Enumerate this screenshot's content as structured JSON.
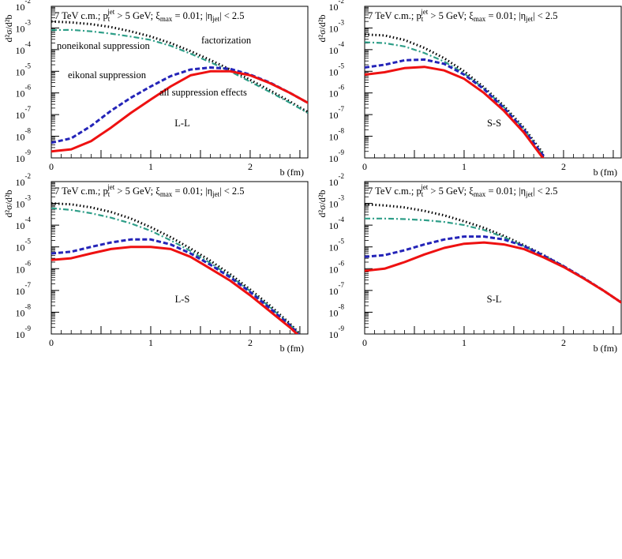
{
  "colors": {
    "factorization": "#000000",
    "noneikonal": "#2e9e88",
    "eikonal": "#2424b8",
    "all": "#ee1111",
    "frame": "#000000"
  },
  "common": {
    "header_prefix": "7 TeV c.m.;  p",
    "header_pt_sub": "t",
    "header_pt_sup": "jet",
    "header_mid": " > 5 GeV;  ξ",
    "header_xi_sub": "max",
    "header_mid2": " = 0.01;  |η",
    "header_eta_sub": "jet",
    "header_suffix": "| < 2.5",
    "ylabel": "d²σ/d²b",
    "xlabel": "b (fm)",
    "y_base": "10",
    "y_exponents": [
      "-9",
      "-8",
      "-7",
      "-6",
      "-5",
      "-4",
      "-3",
      "-2"
    ],
    "x_ticks": [
      "0",
      "1",
      "2"
    ]
  },
  "chart_data": [
    {
      "type": "line",
      "panel": "L-L",
      "label": "L-L",
      "xlabel": "b (fm)",
      "ylabel": "d²σ/d²b",
      "xlim": [
        0,
        2.58
      ],
      "ylim": [
        1e-09,
        0.01
      ],
      "yscale": "log",
      "annotations": [
        "factorization",
        "noneikonal suppression",
        "eikonal suppression",
        "all suppression effects"
      ],
      "series": [
        {
          "key": "factorization",
          "x": [
            0,
            0.2,
            0.4,
            0.6,
            0.8,
            1.0,
            1.2,
            1.4,
            1.6,
            1.8,
            2.0,
            2.2,
            2.4,
            2.58
          ],
          "y": [
            0.002,
            0.0018,
            0.0015,
            0.0011,
            0.0007,
            0.0004,
            0.0002,
            8.5e-05,
            3.3e-05,
            1.2e-05,
            4e-06,
            1.3e-06,
            4e-07,
            1.3e-07
          ]
        },
        {
          "key": "noneikonal",
          "x": [
            0,
            0.2,
            0.4,
            0.6,
            0.8,
            1.0,
            1.2,
            1.4,
            1.6,
            1.8,
            2.0,
            2.2,
            2.4,
            2.58
          ],
          "y": [
            0.0008,
            0.00082,
            0.0007,
            0.00055,
            0.0004,
            0.00028,
            0.00015,
            6.5e-05,
            2.6e-05,
            1e-05,
            3.3e-06,
            1.1e-06,
            3.5e-07,
            1.2e-07
          ]
        },
        {
          "key": "eikonal",
          "x": [
            0,
            0.2,
            0.4,
            0.6,
            0.8,
            1.0,
            1.2,
            1.4,
            1.6,
            1.8,
            2.0,
            2.2,
            2.4,
            2.58
          ],
          "y": [
            5e-09,
            8e-09,
            3e-08,
            1.5e-07,
            6e-07,
            2e-06,
            6e-06,
            1.2e-05,
            1.5e-05,
            1.3e-05,
            7e-06,
            3e-06,
            1e-06,
            3.5e-07
          ]
        },
        {
          "key": "all",
          "x": [
            0,
            0.2,
            0.4,
            0.6,
            0.8,
            1.0,
            1.2,
            1.4,
            1.6,
            1.8,
            2.0,
            2.2,
            2.4,
            2.58
          ],
          "y": [
            2e-09,
            2.5e-09,
            6e-09,
            2.5e-08,
            1.2e-07,
            5e-07,
            2e-06,
            6.5e-06,
            1e-05,
            1e-05,
            6.5e-06,
            2.8e-06,
            1e-06,
            3.5e-07
          ]
        }
      ]
    },
    {
      "type": "line",
      "panel": "S-S",
      "label": "S-S",
      "xlabel": "b (fm)",
      "ylabel": "d²σ/d²b",
      "xlim": [
        0,
        2.58
      ],
      "ylim": [
        1e-09,
        0.01
      ],
      "yscale": "log",
      "series": [
        {
          "key": "factorization",
          "x": [
            0,
            0.2,
            0.4,
            0.6,
            0.8,
            1.0,
            1.2,
            1.4,
            1.6,
            1.8
          ],
          "y": [
            0.0005,
            0.00045,
            0.00028,
            0.00012,
            4e-05,
            1e-05,
            1.8e-06,
            2.5e-07,
            2.5e-08,
            1.5e-09
          ]
        },
        {
          "key": "noneikonal",
          "x": [
            0,
            0.2,
            0.4,
            0.6,
            0.8,
            1.0,
            1.2,
            1.4,
            1.6,
            1.8
          ],
          "y": [
            0.00022,
            0.0002,
            0.00014,
            7e-05,
            2.8e-05,
            8e-06,
            1.6e-06,
            2.2e-07,
            2.2e-08,
            1.3e-09
          ]
        },
        {
          "key": "eikonal",
          "x": [
            0,
            0.2,
            0.4,
            0.6,
            0.8,
            1.0,
            1.2,
            1.4,
            1.6,
            1.8
          ],
          "y": [
            1.5e-05,
            2e-05,
            3.2e-05,
            3.5e-05,
            2.2e-05,
            7e-06,
            1.5e-06,
            2e-07,
            2e-08,
            1.2e-09
          ]
        },
        {
          "key": "all",
          "x": [
            0,
            0.2,
            0.4,
            0.6,
            0.8,
            1.0,
            1.2,
            1.4,
            1.6,
            1.8
          ],
          "y": [
            7e-06,
            9e-06,
            1.4e-05,
            1.6e-05,
            1.1e-05,
            4.5e-06,
            1e-06,
            1.5e-07,
            1.5e-08,
            9e-10
          ]
        }
      ]
    },
    {
      "type": "line",
      "panel": "L-S",
      "label": "L-S",
      "xlabel": "b (fm)",
      "ylabel": "d²σ/d²b",
      "xlim": [
        0,
        2.58
      ],
      "ylim": [
        1e-09,
        0.01
      ],
      "yscale": "log",
      "series": [
        {
          "key": "factorization",
          "x": [
            0,
            0.2,
            0.4,
            0.6,
            0.8,
            1.0,
            1.2,
            1.4,
            1.6,
            1.8,
            2.0,
            2.2,
            2.4,
            2.5
          ],
          "y": [
            0.001,
            0.0009,
            0.00065,
            0.0004,
            0.0002,
            8e-05,
            2.8e-05,
            8.5e-06,
            2.3e-06,
            5.5e-07,
            1.1e-07,
            2e-08,
            3e-09,
            1e-09
          ]
        },
        {
          "key": "noneikonal",
          "x": [
            0,
            0.2,
            0.4,
            0.6,
            0.8,
            1.0,
            1.2,
            1.4,
            1.6,
            1.8,
            2.0,
            2.2,
            2.4,
            2.5
          ],
          "y": [
            0.0006,
            0.0005,
            0.00035,
            0.00022,
            0.00012,
            5.5e-05,
            2e-05,
            6.5e-06,
            1.8e-06,
            4.5e-07,
            9.5e-08,
            1.7e-08,
            2.7e-09,
            9e-10
          ]
        },
        {
          "key": "eikonal",
          "x": [
            0,
            0.2,
            0.4,
            0.6,
            0.8,
            1.0,
            1.2,
            1.4,
            1.6,
            1.8,
            2.0,
            2.2,
            2.4,
            2.5
          ],
          "y": [
            5e-06,
            6e-06,
            1e-05,
            1.6e-05,
            2.2e-05,
            2.2e-05,
            1.3e-05,
            5e-06,
            1.5e-06,
            4e-07,
            8.5e-08,
            1.5e-08,
            2.5e-09,
            8.5e-10
          ]
        },
        {
          "key": "all",
          "x": [
            0,
            0.2,
            0.4,
            0.6,
            0.8,
            1.0,
            1.2,
            1.4,
            1.6,
            1.8,
            2.0,
            2.2,
            2.4,
            2.5
          ],
          "y": [
            2.5e-06,
            3e-06,
            5e-06,
            8e-06,
            1e-05,
            1e-05,
            8e-06,
            3.5e-06,
            1e-06,
            2.8e-07,
            6e-08,
            1.1e-08,
            2e-09,
            7.5e-10
          ]
        }
      ]
    },
    {
      "type": "line",
      "panel": "S-L",
      "label": "S-L",
      "xlabel": "b (fm)",
      "ylabel": "d²σ/d²b",
      "xlim": [
        0,
        2.58
      ],
      "ylim": [
        1e-09,
        0.01
      ],
      "yscale": "log",
      "series": [
        {
          "key": "factorization",
          "x": [
            0,
            0.2,
            0.4,
            0.6,
            0.8,
            1.0,
            1.2,
            1.4,
            1.6,
            1.8,
            2.0,
            2.2,
            2.4,
            2.58
          ],
          "y": [
            0.0009,
            0.0008,
            0.00065,
            0.00045,
            0.00028,
            0.00015,
            7.5e-05,
            3.2e-05,
            1.2e-05,
            4.2e-06,
            1.3e-06,
            3.8e-07,
            1e-07,
            2.8e-08
          ]
        },
        {
          "key": "noneikonal",
          "x": [
            0,
            0.2,
            0.4,
            0.6,
            0.8,
            1.0,
            1.2,
            1.4,
            1.6,
            1.8,
            2.0,
            2.2,
            2.4,
            2.58
          ],
          "y": [
            0.0002,
            0.0002,
            0.00019,
            0.00017,
            0.00014,
            0.0001,
            6e-05,
            2.8e-05,
            1.1e-05,
            4e-06,
            1.3e-06,
            3.8e-07,
            1e-07,
            2.8e-08
          ]
        },
        {
          "key": "eikonal",
          "x": [
            0,
            0.2,
            0.4,
            0.6,
            0.8,
            1.0,
            1.2,
            1.4,
            1.6,
            1.8,
            2.0,
            2.2,
            2.4,
            2.58
          ],
          "y": [
            3.5e-06,
            4.2e-06,
            7e-06,
            1.3e-05,
            2.2e-05,
            3e-05,
            3e-05,
            2.2e-05,
            1.1e-05,
            4e-06,
            1.3e-06,
            3.8e-07,
            1e-07,
            2.8e-08
          ]
        },
        {
          "key": "all",
          "x": [
            0,
            0.2,
            0.4,
            0.6,
            0.8,
            1.0,
            1.2,
            1.4,
            1.6,
            1.8,
            2.0,
            2.2,
            2.4,
            2.58
          ],
          "y": [
            8e-07,
            1e-06,
            2e-06,
            4.5e-06,
            9e-06,
            1.4e-05,
            1.6e-05,
            1.3e-05,
            8e-06,
            3.3e-06,
            1.2e-06,
            3.6e-07,
            1e-07,
            2.8e-08
          ]
        }
      ]
    }
  ]
}
